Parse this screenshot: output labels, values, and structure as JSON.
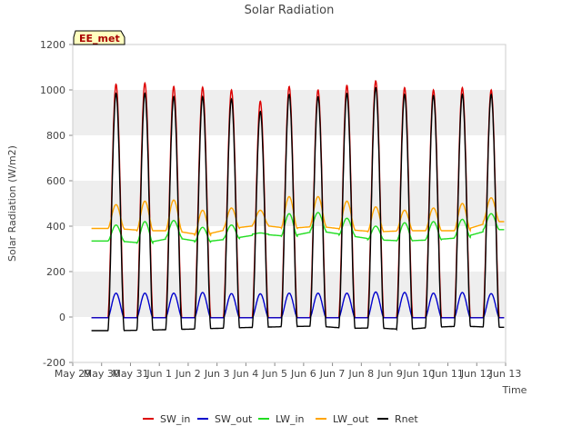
{
  "chart_data": {
    "type": "line",
    "title": "Solar Radiation",
    "xlabel": "Time",
    "ylabel": "Solar Radiation (W/m2)",
    "annotation": "EE_met",
    "xlim": [
      "2024-05-29",
      "2024-06-13"
    ],
    "ylim": [
      -200,
      1200
    ],
    "yticks": [
      -200,
      0,
      200,
      400,
      600,
      800,
      1000,
      1200
    ],
    "xticks": [
      "May 29",
      "May 30",
      "May 31",
      "Jun 1",
      "Jun 2",
      "Jun 3",
      "Jun 4",
      "Jun 5",
      "Jun 6",
      "Jun 7",
      "Jun 8",
      "Jun 9",
      "Jun 10",
      "Jun 11",
      "Jun 12",
      "Jun 13"
    ],
    "grid": "horizontal bands",
    "legend_position": "bottom",
    "day_noon_dates": [
      "2024-05-30",
      "2024-05-31",
      "2024-06-01",
      "2024-06-02",
      "2024-06-03",
      "2024-06-04",
      "2024-06-05",
      "2024-06-06",
      "2024-06-07",
      "2024-06-08",
      "2024-06-09",
      "2024-06-10",
      "2024-06-11",
      "2024-06-12"
    ],
    "series": [
      {
        "name": "SW_in",
        "color": "#dd0000",
        "night_value": -3,
        "daily_peak": [
          1025,
          1030,
          1015,
          1012,
          1000,
          950,
          1015,
          1000,
          1020,
          1040,
          1010,
          1000,
          1010,
          1000
        ]
      },
      {
        "name": "SW_out",
        "color": "#0000cc",
        "night_value": -3,
        "daily_peak": [
          105,
          105,
          105,
          108,
          103,
          102,
          105,
          105,
          105,
          110,
          108,
          105,
          108,
          103
        ]
      },
      {
        "name": "LW_in",
        "color": "#22dd22",
        "night_value": [
          335,
          325,
          350,
          330,
          345,
          365,
          355,
          380,
          360,
          340,
          335,
          340,
          350,
          385
        ],
        "daily_peak": [
          405,
          420,
          425,
          395,
          405,
          370,
          455,
          460,
          435,
          400,
          415,
          420,
          430,
          455
        ]
      },
      {
        "name": "LW_out",
        "color": "#ffa500",
        "night_value": [
          390,
          380,
          380,
          360,
          390,
          405,
          390,
          400,
          385,
          375,
          380,
          380,
          380,
          420
        ],
        "daily_peak": [
          495,
          510,
          515,
          470,
          480,
          470,
          530,
          530,
          510,
          485,
          470,
          480,
          500,
          525
        ]
      },
      {
        "name": "Rnet",
        "color": "#000000",
        "night_value": [
          -60,
          -58,
          -55,
          -52,
          -48,
          -45,
          -42,
          -40,
          -50,
          -48,
          -55,
          -45,
          -40,
          -45
        ],
        "daily_peak": [
          985,
          985,
          970,
          970,
          960,
          905,
          980,
          970,
          985,
          1010,
          980,
          975,
          980,
          980
        ]
      }
    ]
  }
}
